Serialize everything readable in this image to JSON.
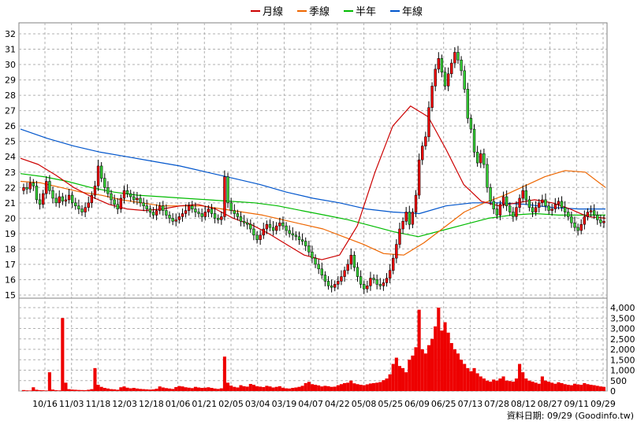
{
  "chart_data": {
    "type": "candlestick",
    "legend": [
      {
        "name": "月線",
        "color": "#cc0000"
      },
      {
        "name": "季線",
        "color": "#ee6600"
      },
      {
        "name": "半年",
        "color": "#00bb00"
      },
      {
        "name": "年線",
        "color": "#0055cc"
      }
    ],
    "legend_position": "top",
    "grid": true,
    "price_axis": {
      "ylim": [
        15,
        32
      ],
      "ticks": [
        "15",
        "16",
        "17",
        "18",
        "19",
        "20",
        "21",
        "22",
        "23",
        "24",
        "25",
        "26",
        "27",
        "28",
        "29",
        "30",
        "31",
        "32"
      ]
    },
    "volume_axis": {
      "ylim": [
        0,
        4000
      ],
      "ticks": [
        "0",
        "500",
        "1,000",
        "1,500",
        "2,000",
        "2,500",
        "3,000",
        "3,500",
        "4,000"
      ]
    },
    "x_labels": [
      "10/16",
      "11/03",
      "11/18",
      "12/03",
      "12/18",
      "01/06",
      "01/21",
      "02/05",
      "03/04",
      "03/19",
      "04/07",
      "04/22",
      "05/08",
      "05/25",
      "06/09",
      "06/25",
      "07/13",
      "07/28",
      "08/12",
      "08/27",
      "09/11",
      "09/29"
    ],
    "closes": [
      22,
      21.9,
      22.3,
      22.1,
      21.2,
      20.9,
      21.6,
      22.4,
      21.8,
      21.3,
      21.0,
      21.4,
      21.1,
      21.2,
      21.5,
      21.0,
      20.8,
      20.6,
      20.4,
      20.7,
      21.0,
      21.5,
      22.1,
      23.4,
      22.6,
      22.0,
      21.6,
      21.2,
      20.9,
      20.6,
      21.3,
      21.8,
      21.6,
      21.4,
      21.2,
      21.3,
      21.0,
      20.8,
      20.6,
      20.4,
      20.2,
      20.5,
      20.8,
      20.5,
      20.2,
      20.0,
      19.8,
      19.9,
      20.1,
      20.3,
      20.5,
      20.8,
      20.6,
      20.4,
      20.3,
      20.1,
      20.4,
      20.6,
      20.3,
      20.0,
      19.9,
      20.1,
      22.7,
      21.0,
      20.5,
      20.3,
      20.1,
      19.8,
      19.7,
      19.6,
      19.3,
      18.9,
      18.6,
      18.9,
      19.3,
      19.6,
      19.4,
      19.2,
      19.5,
      19.7,
      19.5,
      19.2,
      19.0,
      18.9,
      18.8,
      18.6,
      18.5,
      18.2,
      17.8,
      17.4,
      17.0,
      16.7,
      16.3,
      15.9,
      15.6,
      15.5,
      15.7,
      15.9,
      16.2,
      16.6,
      17.0,
      17.6,
      16.8,
      16.2,
      15.7,
      15.4,
      15.6,
      16.1,
      16.0,
      15.7,
      15.6,
      15.8,
      16.1,
      16.6,
      17.4,
      18.3,
      19.3,
      19.8,
      20.4,
      19.6,
      20.4,
      21.5,
      23.8,
      24.7,
      25.3,
      27.2,
      28.6,
      29.7,
      30.4,
      29.5,
      28.6,
      29.4,
      30.1,
      30.8,
      30.3,
      29.6,
      28.4,
      26.5,
      25.8,
      24.3,
      23.6,
      24.2,
      23.5,
      22.0,
      21.1,
      20.6,
      20.2,
      20.9,
      21.4,
      20.8,
      20.4,
      20.1,
      20.7,
      21.3,
      21.8,
      21.2,
      20.7,
      20.4,
      20.7,
      21.0,
      21.2,
      20.8,
      20.5,
      20.6,
      20.9,
      21.1,
      20.7,
      20.4,
      20.1,
      19.7,
      19.4,
      19.2,
      19.6,
      20.1,
      20.4,
      20.5,
      20.2,
      19.9,
      19.7,
      19.8
    ],
    "volumes": [
      45,
      30,
      25,
      180,
      60,
      40,
      35,
      25,
      900,
      70,
      40,
      30,
      3500,
      400,
      90,
      70,
      60,
      50,
      45,
      40,
      60,
      90,
      1100,
      300,
      200,
      150,
      120,
      90,
      80,
      60,
      180,
      220,
      160,
      130,
      150,
      120,
      100,
      90,
      80,
      70,
      80,
      110,
      220,
      170,
      140,
      120,
      100,
      190,
      240,
      220,
      180,
      160,
      140,
      200,
      170,
      150,
      160,
      180,
      150,
      120,
      100,
      130,
      1650,
      400,
      260,
      200,
      170,
      280,
      230,
      210,
      340,
      300,
      230,
      210,
      190,
      250,
      220,
      170,
      200,
      230,
      160,
      130,
      120,
      150,
      170,
      200,
      250,
      380,
      440,
      330,
      300,
      270,
      220,
      250,
      230,
      200,
      210,
      280,
      330,
      380,
      400,
      500,
      370,
      330,
      300,
      280,
      320,
      360,
      380,
      400,
      430,
      520,
      600,
      800,
      1300,
      1600,
      1200,
      1100,
      900,
      1500,
      1700,
      2100,
      3900,
      2000,
      1800,
      2200,
      2500,
      3100,
      4000,
      2900,
      3300,
      2800,
      2300,
      2000,
      1800,
      1500,
      1300,
      1100,
      950,
      1100,
      850,
      700,
      600,
      500,
      450,
      550,
      500,
      600,
      700,
      500,
      480,
      450,
      600,
      1300,
      900,
      600,
      500,
      450,
      400,
      350,
      700,
      500,
      450,
      400,
      350,
      420,
      380,
      330,
      300,
      280,
      350,
      320,
      300,
      380,
      330,
      300,
      280,
      250,
      220,
      200
    ],
    "ma_month": [
      23.9,
      23.5,
      22.8,
      22.0,
      21.4,
      20.9,
      20.6,
      20.5,
      20.6,
      20.8,
      20.9,
      20.6,
      20.0,
      19.6,
      19.0,
      18.3,
      17.6,
      17.3,
      17.6,
      19.5,
      23.0,
      26.0,
      27.3,
      26.6,
      24.5,
      22.2,
      21.1,
      20.8,
      21.0,
      21.2,
      21.0,
      20.6,
      20.1,
      20.0
    ],
    "ma_quarter": [
      22.4,
      22.3,
      22.0,
      21.7,
      21.5,
      21.2,
      21.0,
      20.8,
      20.8,
      20.8,
      20.6,
      20.4,
      20.2,
      19.9,
      19.6,
      19.3,
      18.8,
      18.3,
      17.7,
      17.6,
      18.4,
      19.4,
      20.4,
      21.0,
      21.5,
      22.1,
      22.7,
      23.1,
      23.0,
      22.0
    ],
    "ma_half": [
      22.9,
      22.7,
      22.4,
      22.0,
      21.7,
      21.5,
      21.4,
      21.3,
      21.2,
      21.1,
      21.0,
      20.8,
      20.5,
      20.2,
      19.9,
      19.5,
      19.1,
      18.8,
      19.2,
      19.6,
      20.0,
      20.2,
      20.3,
      20.2,
      20.2,
      20.2
    ],
    "ma_year": [
      25.8,
      25.2,
      24.7,
      24.3,
      24.0,
      23.7,
      23.4,
      23.0,
      22.6,
      22.2,
      21.7,
      21.3,
      21.0,
      20.6,
      20.4,
      20.3,
      20.8,
      21.0,
      21.0,
      20.9,
      20.7,
      20.6,
      20.6
    ],
    "source_label": "資料日期: 09/29 (Goodinfo.tw)"
  }
}
